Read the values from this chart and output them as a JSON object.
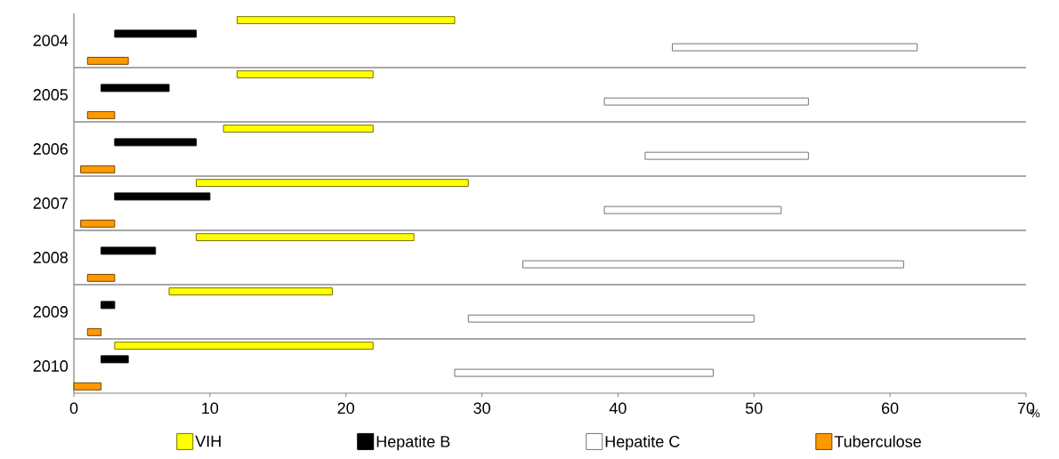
{
  "chart_data": {
    "type": "bar",
    "orientation": "horizontal",
    "categories": [
      "2004",
      "2005",
      "2006",
      "2007",
      "2008",
      "2009",
      "2010"
    ],
    "series": [
      {
        "name": "VIH",
        "color": "#ffff00",
        "base": [
          12,
          12,
          11,
          9,
          9,
          7,
          3
        ],
        "values": [
          16,
          10,
          11,
          20,
          16,
          12,
          19
        ]
      },
      {
        "name": "Hepatite B",
        "color": "#000000",
        "base": [
          3,
          2,
          3,
          3,
          2,
          2,
          2
        ],
        "values": [
          6,
          5,
          6,
          7,
          4,
          1,
          2
        ]
      },
      {
        "name": "Hepatite C",
        "color": "#ffffff",
        "base": [
          44,
          39,
          42,
          39,
          33,
          29,
          28
        ],
        "values": [
          18,
          15,
          12,
          13,
          28,
          21,
          19
        ]
      },
      {
        "name": "Tuberculose",
        "color": "#ff9900",
        "base": [
          1,
          1,
          0.5,
          0.5,
          1,
          1,
          0
        ],
        "values": [
          3,
          2,
          2.5,
          2.5,
          2,
          1,
          2
        ]
      }
    ],
    "xlim": [
      0,
      70
    ],
    "xticks": [
      0,
      10,
      20,
      30,
      40,
      50,
      60,
      70
    ],
    "xlabel": "%",
    "grid": "y",
    "legend": "bottom"
  }
}
